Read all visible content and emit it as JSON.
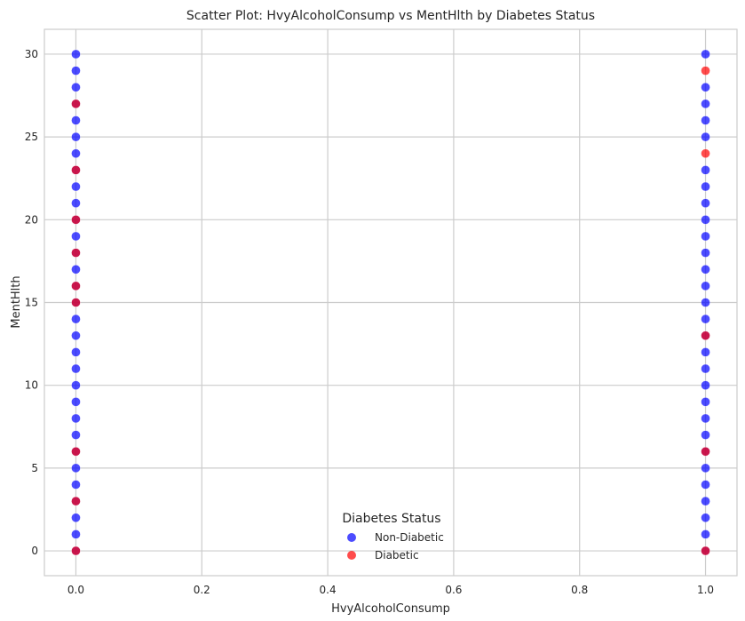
{
  "chart_data": {
    "type": "scatter",
    "title": "Scatter Plot: HvyAlcoholConsump vs MentHlth by Diabetes Status",
    "xlabel": "HvyAlcoholConsump",
    "ylabel": "MentHlth",
    "xlim": [
      -0.05,
      1.05
    ],
    "ylim": [
      -1.5,
      31.5
    ],
    "xticks": [
      "0.0",
      "0.2",
      "0.4",
      "0.6",
      "0.8",
      "1.0"
    ],
    "yticks": [
      "0",
      "5",
      "10",
      "15",
      "20",
      "25",
      "30"
    ],
    "grid": true,
    "legend": {
      "title": "Diabetes Status",
      "placement": "lower-center"
    },
    "series": [
      {
        "name": "Non-Diabetic",
        "color": "#0000ff",
        "points": [
          [
            0,
            0
          ],
          [
            0,
            1
          ],
          [
            0,
            2
          ],
          [
            0,
            3
          ],
          [
            0,
            4
          ],
          [
            0,
            5
          ],
          [
            0,
            6
          ],
          [
            0,
            7
          ],
          [
            0,
            8
          ],
          [
            0,
            9
          ],
          [
            0,
            10
          ],
          [
            0,
            11
          ],
          [
            0,
            12
          ],
          [
            0,
            13
          ],
          [
            0,
            14
          ],
          [
            0,
            15
          ],
          [
            0,
            16
          ],
          [
            0,
            17
          ],
          [
            0,
            18
          ],
          [
            0,
            19
          ],
          [
            0,
            20
          ],
          [
            0,
            21
          ],
          [
            0,
            22
          ],
          [
            0,
            23
          ],
          [
            0,
            24
          ],
          [
            0,
            25
          ],
          [
            0,
            26
          ],
          [
            0,
            27
          ],
          [
            0,
            28
          ],
          [
            0,
            29
          ],
          [
            0,
            30
          ],
          [
            1,
            0
          ],
          [
            1,
            1
          ],
          [
            1,
            2
          ],
          [
            1,
            3
          ],
          [
            1,
            4
          ],
          [
            1,
            5
          ],
          [
            1,
            6
          ],
          [
            1,
            7
          ],
          [
            1,
            8
          ],
          [
            1,
            9
          ],
          [
            1,
            10
          ],
          [
            1,
            11
          ],
          [
            1,
            12
          ],
          [
            1,
            13
          ],
          [
            1,
            14
          ],
          [
            1,
            15
          ],
          [
            1,
            16
          ],
          [
            1,
            17
          ],
          [
            1,
            18
          ],
          [
            1,
            19
          ],
          [
            1,
            20
          ],
          [
            1,
            21
          ],
          [
            1,
            22
          ],
          [
            1,
            23
          ],
          [
            1,
            25
          ],
          [
            1,
            26
          ],
          [
            1,
            27
          ],
          [
            1,
            28
          ],
          [
            1,
            30
          ]
        ]
      },
      {
        "name": "Diabetic",
        "color": "#ff0000",
        "points": [
          [
            0,
            0
          ],
          [
            0,
            3
          ],
          [
            0,
            6
          ],
          [
            0,
            15
          ],
          [
            0,
            16
          ],
          [
            0,
            18
          ],
          [
            0,
            20
          ],
          [
            0,
            23
          ],
          [
            0,
            27
          ],
          [
            1,
            0
          ],
          [
            1,
            6
          ],
          [
            1,
            13
          ],
          [
            1,
            24
          ],
          [
            1,
            29
          ]
        ]
      }
    ]
  }
}
